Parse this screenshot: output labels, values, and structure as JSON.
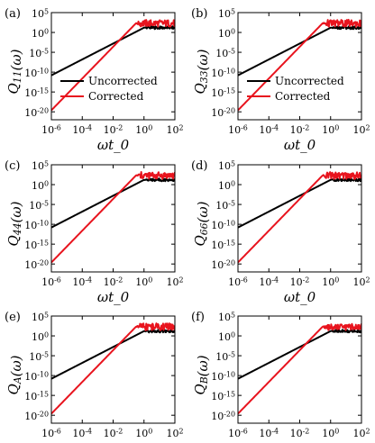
{
  "colors": {
    "uncorrected": "#000000",
    "corrected": "#e8141e",
    "axis": "#000000"
  },
  "legend_entries": [
    "Uncorrected",
    "Corrected"
  ],
  "chart_data": [
    {
      "type": "line",
      "panel": "(a)",
      "ylabel": "Q_{11}(ω)",
      "xlabel": "ωt_0",
      "xscale": "log",
      "yscale": "log",
      "xlim": [
        1e-06,
        100
      ],
      "ylim": [
        1e-22,
        100000
      ],
      "xticks": [
        "10^{-6}",
        "10^{-4}",
        "10^{-2}",
        "10^{0}",
        "10^{2}"
      ],
      "yticks": [
        "10^{5}",
        "10^{0}",
        "10^{-5}",
        "10^{-10}",
        "10^{-15}",
        "10^{-20}"
      ],
      "grid": false,
      "legend_position": "lower-right",
      "show_legend": true,
      "series": [
        {
          "name": "Uncorrected",
          "color": "#000000",
          "knee_x": 1,
          "plateau_log10_y": 1.2,
          "slope": 2,
          "noise_amp": 0.35
        },
        {
          "name": "Corrected",
          "color": "#e8141e",
          "knee_x": 0.3,
          "plateau_log10_y": 2.3,
          "slope": 4,
          "noise_amp": 0.9
        }
      ]
    },
    {
      "type": "line",
      "panel": "(b)",
      "ylabel": "Q_{33}(ω)",
      "xlabel": "ωt_0",
      "xscale": "log",
      "yscale": "log",
      "xlim": [
        1e-06,
        100
      ],
      "ylim": [
        1e-22,
        100000
      ],
      "xticks": [
        "10^{-6}",
        "10^{-4}",
        "10^{-2}",
        "10^{0}",
        "10^{2}"
      ],
      "yticks": [
        "10^{5}",
        "10^{0}",
        "10^{-5}",
        "10^{-10}",
        "10^{-15}",
        "10^{-20}"
      ],
      "grid": false,
      "legend_position": "lower-right",
      "show_legend": true,
      "series": [
        {
          "name": "Uncorrected",
          "color": "#000000",
          "knee_x": 1,
          "plateau_log10_y": 1.2,
          "slope": 2,
          "noise_amp": 0.35
        },
        {
          "name": "Corrected",
          "color": "#e8141e",
          "knee_x": 0.3,
          "plateau_log10_y": 2.3,
          "slope": 4,
          "noise_amp": 0.9
        }
      ]
    },
    {
      "type": "line",
      "panel": "(c)",
      "ylabel": "Q_{44}(ω)",
      "xlabel": "ωt_0",
      "xscale": "log",
      "yscale": "log",
      "xlim": [
        1e-06,
        100
      ],
      "ylim": [
        1e-22,
        100000
      ],
      "xticks": [
        "10^{-6}",
        "10^{-4}",
        "10^{-2}",
        "10^{0}",
        "10^{2}"
      ],
      "yticks": [
        "10^{5}",
        "10^{0}",
        "10^{-5}",
        "10^{-10}",
        "10^{-15}",
        "10^{-20}"
      ],
      "grid": false,
      "legend_position": "lower-right",
      "show_legend": false,
      "series": [
        {
          "name": "Uncorrected",
          "color": "#000000",
          "knee_x": 1,
          "plateau_log10_y": 1.2,
          "slope": 2,
          "noise_amp": 0.35
        },
        {
          "name": "Corrected",
          "color": "#e8141e",
          "knee_x": 0.3,
          "plateau_log10_y": 2.3,
          "slope": 4,
          "noise_amp": 0.9
        }
      ]
    },
    {
      "type": "line",
      "panel": "(d)",
      "ylabel": "Q_{66}(ω)",
      "xlabel": "ωt_0",
      "xscale": "log",
      "yscale": "log",
      "xlim": [
        1e-06,
        100
      ],
      "ylim": [
        1e-22,
        100000
      ],
      "xticks": [
        "10^{-6}",
        "10^{-4}",
        "10^{-2}",
        "10^{0}",
        "10^{2}"
      ],
      "yticks": [
        "10^{5}",
        "10^{0}",
        "10^{-5}",
        "10^{-10}",
        "10^{-15}",
        "10^{-20}"
      ],
      "grid": false,
      "legend_position": "lower-right",
      "show_legend": false,
      "series": [
        {
          "name": "Uncorrected",
          "color": "#000000",
          "knee_x": 1,
          "plateau_log10_y": 1.2,
          "slope": 2,
          "noise_amp": 0.35
        },
        {
          "name": "Corrected",
          "color": "#e8141e",
          "knee_x": 0.3,
          "plateau_log10_y": 2.3,
          "slope": 4,
          "noise_amp": 0.9
        }
      ]
    },
    {
      "type": "line",
      "panel": "(e)",
      "ylabel": "Q_{A}(ω)",
      "xlabel": "ωt_0",
      "xscale": "log",
      "yscale": "log",
      "xlim": [
        1e-06,
        100
      ],
      "ylim": [
        1e-22,
        100000
      ],
      "xticks": [
        "10^{-6}",
        "10^{-4}",
        "10^{-2}",
        "10^{0}",
        "10^{2}"
      ],
      "yticks": [
        "10^{5}",
        "10^{0}",
        "10^{-5}",
        "10^{-10}",
        "10^{-15}",
        "10^{-20}"
      ],
      "grid": false,
      "legend_position": "lower-right",
      "show_legend": false,
      "series": [
        {
          "name": "Uncorrected",
          "color": "#000000",
          "knee_x": 1,
          "plateau_log10_y": 1.2,
          "slope": 2,
          "noise_amp": 0.35
        },
        {
          "name": "Corrected",
          "color": "#e8141e",
          "knee_x": 0.3,
          "plateau_log10_y": 2.3,
          "slope": 4,
          "noise_amp": 0.9
        }
      ]
    },
    {
      "type": "line",
      "panel": "(f)",
      "ylabel": "Q_{B}(ω)",
      "xlabel": "ωt_0",
      "xscale": "log",
      "yscale": "log",
      "xlim": [
        1e-06,
        100
      ],
      "ylim": [
        1e-22,
        100000
      ],
      "xticks": [
        "10^{-6}",
        "10^{-4}",
        "10^{-2}",
        "10^{0}",
        "10^{2}"
      ],
      "yticks": [
        "10^{5}",
        "10^{0}",
        "10^{-5}",
        "10^{-10}",
        "10^{-15}",
        "10^{-20}"
      ],
      "grid": false,
      "legend_position": "lower-right",
      "show_legend": false,
      "series": [
        {
          "name": "Uncorrected",
          "color": "#000000",
          "knee_x": 1,
          "plateau_log10_y": 1.2,
          "slope": 2,
          "noise_amp": 0.35
        },
        {
          "name": "Corrected",
          "color": "#e8141e",
          "knee_x": 0.3,
          "plateau_log10_y": 2.3,
          "slope": 4,
          "noise_amp": 0.9
        }
      ]
    }
  ]
}
